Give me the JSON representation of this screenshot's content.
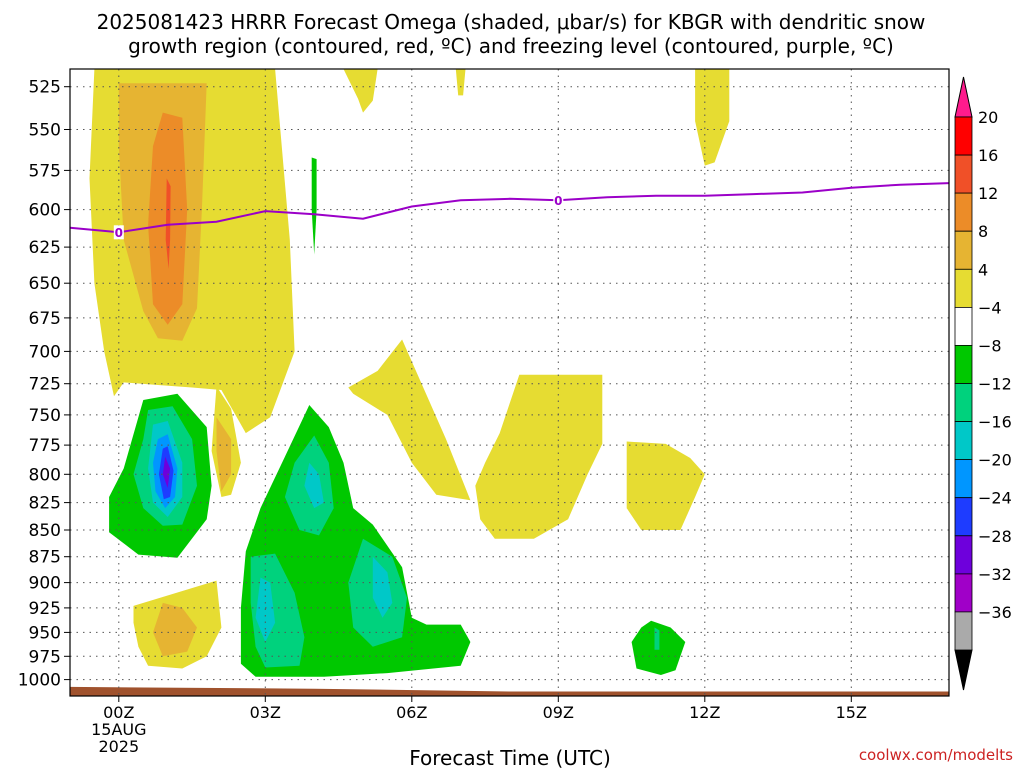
{
  "chart_data": {
    "type": "heatmap",
    "title_line1": "2025081423 HRRR Forecast Omega (shaded, μbar/s) for KBGR with dendritic snow",
    "title_line2": "growth region (contoured, red, ºC) and freezing level (contoured, purple, ºC)",
    "xlabel": "Forecast Time (UTC)",
    "credit": "coolwx.com/modelts",
    "x_ticks": [
      {
        "hour": 0,
        "label": "00Z",
        "sub1": "15AUG",
        "sub2": "2025"
      },
      {
        "hour": 3,
        "label": "03Z"
      },
      {
        "hour": 6,
        "label": "06Z"
      },
      {
        "hour": 9,
        "label": "09Z"
      },
      {
        "hour": 12,
        "label": "12Z"
      },
      {
        "hour": 15,
        "label": "15Z"
      }
    ],
    "x_range_hours": [
      -1,
      17
    ],
    "y_ticks": [
      525,
      550,
      575,
      600,
      625,
      650,
      675,
      700,
      725,
      750,
      775,
      800,
      825,
      850,
      875,
      900,
      925,
      950,
      975,
      1000
    ],
    "y_range_mb": [
      515,
      1018
    ],
    "colorbar": {
      "labels": [
        "20",
        "16",
        "12",
        "8",
        "4",
        "−4",
        "−8",
        "−12",
        "−16",
        "−20",
        "−24",
        "−28",
        "−32",
        "−36"
      ],
      "colors": [
        "#ff0000",
        "#f05028",
        "#ec8c28",
        "#e6b432",
        "#e6dc32",
        "#ffffff",
        "#00c800",
        "#00d27d",
        "#00c8c8",
        "#0096ff",
        "#1e3cff",
        "#6e00dc",
        "#a000c8",
        "#aaaaaa"
      ],
      "top_color": "#ff1b8d",
      "bottom_color": "#000000"
    },
    "freezing_level": {
      "label": "0",
      "color": "#9b00c8",
      "points": [
        [
          -1,
          612
        ],
        [
          0,
          615
        ],
        [
          1,
          610
        ],
        [
          2,
          608
        ],
        [
          3,
          601
        ],
        [
          4,
          603
        ],
        [
          5,
          606
        ],
        [
          6,
          598
        ],
        [
          7,
          594
        ],
        [
          8,
          593
        ],
        [
          9,
          594
        ],
        [
          10,
          592
        ],
        [
          11,
          591
        ],
        [
          12,
          591
        ],
        [
          13,
          590
        ],
        [
          14,
          589
        ],
        [
          15,
          586
        ],
        [
          16,
          584
        ],
        [
          17,
          583
        ]
      ]
    },
    "ground_color": "#a0522d",
    "omega_regions": [
      {
        "value_range": "4 to 8",
        "color": "#e6dc32",
        "points": [
          [
            -0.5,
            515
          ],
          [
            0.3,
            515
          ],
          [
            2.3,
            515
          ],
          [
            3.2,
            515
          ],
          [
            3.5,
            620
          ],
          [
            3.6,
            700
          ],
          [
            3.1,
            752
          ],
          [
            2.6,
            765
          ],
          [
            2.1,
            730
          ],
          [
            1.5,
            728
          ],
          [
            0.8,
            726
          ],
          [
            0.1,
            724
          ],
          [
            -0.1,
            735
          ],
          [
            -0.3,
            700
          ],
          [
            -0.5,
            650
          ],
          [
            -0.6,
            580
          ]
        ]
      },
      {
        "value_range": "4 to 8",
        "color": "#e6dc32",
        "points": [
          [
            5.8,
            691
          ],
          [
            6.7,
            770
          ],
          [
            7.2,
            823
          ],
          [
            6.5,
            818
          ],
          [
            6.0,
            790
          ],
          [
            5.5,
            750
          ],
          [
            4.8,
            733
          ],
          [
            4.7,
            728
          ],
          [
            5.3,
            715
          ]
        ]
      },
      {
        "value_range": "4 to 8",
        "color": "#e6dc32",
        "points": [
          [
            8.2,
            718
          ],
          [
            9.9,
            718
          ],
          [
            9.9,
            774
          ],
          [
            9.6,
            800
          ],
          [
            9.2,
            840
          ],
          [
            8.5,
            858
          ],
          [
            7.7,
            858
          ],
          [
            7.4,
            840
          ],
          [
            7.3,
            810
          ],
          [
            7.5,
            790
          ],
          [
            7.8,
            765
          ]
        ]
      },
      {
        "value_range": "4 to 8",
        "color": "#e6dc32",
        "points": [
          [
            10.4,
            772
          ],
          [
            11.2,
            774
          ],
          [
            11.7,
            786
          ],
          [
            12.0,
            800
          ],
          [
            11.8,
            820
          ],
          [
            11.5,
            850
          ],
          [
            10.7,
            850
          ],
          [
            10.4,
            830
          ]
        ]
      },
      {
        "value_range": "4 to 8",
        "color": "#e6dc32",
        "points": [
          [
            0.3,
            923
          ],
          [
            2.0,
            898
          ],
          [
            2.1,
            945
          ],
          [
            1.8,
            975
          ],
          [
            1.3,
            988
          ],
          [
            0.6,
            985
          ],
          [
            0.4,
            965
          ],
          [
            0.3,
            940
          ]
        ]
      },
      {
        "value_range": "4 to 8",
        "color": "#e6dc32",
        "points": [
          [
            2.0,
            727
          ],
          [
            2.3,
            745
          ],
          [
            2.5,
            790
          ],
          [
            2.3,
            818
          ],
          [
            2.1,
            820
          ],
          [
            1.9,
            780
          ]
        ]
      },
      {
        "value_range": "4 to 8",
        "color": "#e6dc32",
        "points": [
          [
            4.6,
            515
          ],
          [
            5.3,
            515
          ],
          [
            5.2,
            533
          ],
          [
            5.0,
            540
          ],
          [
            4.9,
            532
          ]
        ]
      },
      {
        "value_range": "4 to 8",
        "color": "#e6dc32",
        "points": [
          [
            6.9,
            515
          ],
          [
            7.1,
            515
          ],
          [
            7.05,
            530
          ],
          [
            6.95,
            530
          ]
        ]
      },
      {
        "value_range": "4 to 8",
        "color": "#e6dc32",
        "points": [
          [
            11.8,
            515
          ],
          [
            12.5,
            515
          ],
          [
            12.5,
            545
          ],
          [
            12.2,
            570
          ],
          [
            12.0,
            572
          ],
          [
            11.8,
            545
          ]
        ]
      },
      {
        "value_range": "8 to 12",
        "color": "#e6b432",
        "points": [
          [
            0.0,
            523
          ],
          [
            1.8,
            523
          ],
          [
            1.7,
            600
          ],
          [
            1.6,
            668
          ],
          [
            1.3,
            692
          ],
          [
            0.8,
            690
          ],
          [
            0.5,
            670
          ],
          [
            0.1,
            620
          ],
          [
            0.0,
            560
          ]
        ]
      },
      {
        "value_range": "8 to 12",
        "color": "#e6b432",
        "points": [
          [
            2.0,
            752
          ],
          [
            2.3,
            770
          ],
          [
            2.3,
            800
          ],
          [
            2.1,
            815
          ],
          [
            2.0,
            780
          ]
        ]
      },
      {
        "value_range": "8 to 12",
        "color": "#e6b432",
        "points": [
          [
            0.9,
            920
          ],
          [
            1.3,
            925
          ],
          [
            1.6,
            945
          ],
          [
            1.4,
            970
          ],
          [
            0.9,
            975
          ],
          [
            0.7,
            950
          ]
        ]
      },
      {
        "value_range": "12 to 16",
        "color": "#ec8c28",
        "points": [
          [
            0.9,
            540
          ],
          [
            1.3,
            543
          ],
          [
            1.4,
            600
          ],
          [
            1.3,
            665
          ],
          [
            1.0,
            680
          ],
          [
            0.7,
            665
          ],
          [
            0.6,
            610
          ],
          [
            0.7,
            560
          ]
        ]
      },
      {
        "value_range": "16 to 20",
        "color": "#f05028",
        "points": [
          [
            0.98,
            580
          ],
          [
            1.06,
            585
          ],
          [
            1.05,
            620
          ],
          [
            1.02,
            640
          ],
          [
            0.96,
            620
          ]
        ]
      },
      {
        "value_range": "-8 to -4",
        "color": "#00c800",
        "points": [
          [
            0.5,
            738
          ],
          [
            1.2,
            733
          ],
          [
            1.8,
            760
          ],
          [
            1.9,
            810
          ],
          [
            1.8,
            840
          ],
          [
            1.2,
            876
          ],
          [
            0.4,
            873
          ],
          [
            -0.2,
            852
          ],
          [
            -0.2,
            820
          ],
          [
            0.1,
            795
          ]
        ]
      },
      {
        "value_range": "-8 to -4",
        "color": "#00c800",
        "points": [
          [
            3.9,
            742
          ],
          [
            4.3,
            760
          ],
          [
            4.6,
            790
          ],
          [
            4.8,
            830
          ],
          [
            5.2,
            845
          ],
          [
            5.8,
            885
          ],
          [
            6.0,
            935
          ],
          [
            6.3,
            942
          ],
          [
            7.0,
            942
          ],
          [
            7.2,
            960
          ],
          [
            7.0,
            985
          ],
          [
            5.5,
            993
          ],
          [
            4.2,
            997
          ],
          [
            2.8,
            997
          ],
          [
            2.5,
            983
          ],
          [
            2.5,
            925
          ],
          [
            2.6,
            870
          ],
          [
            2.9,
            830
          ],
          [
            3.4,
            785
          ]
        ]
      },
      {
        "value_range": "-8 to -4",
        "color": "#00c800",
        "points": [
          [
            10.9,
            938
          ],
          [
            11.3,
            945
          ],
          [
            11.6,
            960
          ],
          [
            11.4,
            990
          ],
          [
            11.1,
            995
          ],
          [
            10.6,
            988
          ],
          [
            10.5,
            960
          ],
          [
            10.7,
            945
          ]
        ]
      },
      {
        "value_range": "-8 to -4",
        "color": "#00c800",
        "points": [
          [
            3.95,
            567
          ],
          [
            4.05,
            568
          ],
          [
            4.05,
            600
          ],
          [
            4.0,
            630
          ],
          [
            3.95,
            600
          ]
        ]
      },
      {
        "value_range": "-12 to -8",
        "color": "#00d27d",
        "points": [
          [
            0.6,
            746
          ],
          [
            1.1,
            743
          ],
          [
            1.5,
            770
          ],
          [
            1.6,
            810
          ],
          [
            1.3,
            845
          ],
          [
            0.9,
            846
          ],
          [
            0.5,
            830
          ],
          [
            0.3,
            800
          ],
          [
            0.5,
            770
          ]
        ]
      },
      {
        "value_range": "-12 to -8",
        "color": "#00d27d",
        "points": [
          [
            4.0,
            767
          ],
          [
            4.3,
            790
          ],
          [
            4.4,
            830
          ],
          [
            4.1,
            855
          ],
          [
            3.7,
            850
          ],
          [
            3.4,
            820
          ],
          [
            3.6,
            790
          ]
        ]
      },
      {
        "value_range": "-12 to -8",
        "color": "#00d27d",
        "points": [
          [
            2.7,
            875
          ],
          [
            3.2,
            872
          ],
          [
            3.6,
            910
          ],
          [
            3.8,
            955
          ],
          [
            3.7,
            985
          ],
          [
            3.0,
            987
          ],
          [
            2.8,
            965
          ],
          [
            2.7,
            920
          ]
        ]
      },
      {
        "value_range": "-12 to -8",
        "color": "#00d27d",
        "points": [
          [
            5.0,
            858
          ],
          [
            5.6,
            875
          ],
          [
            5.9,
            915
          ],
          [
            5.8,
            955
          ],
          [
            5.2,
            965
          ],
          [
            4.8,
            945
          ],
          [
            4.7,
            900
          ]
        ]
      },
      {
        "value_range": "-12 to -8",
        "color": "#00d27d",
        "points": [
          [
            10.97,
            945
          ],
          [
            11.07,
            948
          ],
          [
            11.07,
            968
          ],
          [
            10.97,
            968
          ]
        ]
      },
      {
        "value_range": "-16 to -12",
        "color": "#00c8c8",
        "points": [
          [
            0.7,
            758
          ],
          [
            1.0,
            755
          ],
          [
            1.3,
            790
          ],
          [
            1.3,
            820
          ],
          [
            1.0,
            838
          ],
          [
            0.7,
            825
          ],
          [
            0.6,
            795
          ]
        ]
      },
      {
        "value_range": "-16 to -12",
        "color": "#00c8c8",
        "points": [
          [
            3.9,
            790
          ],
          [
            4.1,
            800
          ],
          [
            4.2,
            825
          ],
          [
            4.0,
            830
          ],
          [
            3.8,
            810
          ]
        ]
      },
      {
        "value_range": "-16 to -12",
        "color": "#00c8c8",
        "points": [
          [
            2.9,
            895
          ],
          [
            3.1,
            900
          ],
          [
            3.2,
            940
          ],
          [
            3.0,
            960
          ],
          [
            2.8,
            935
          ]
        ]
      },
      {
        "value_range": "-16 to -12",
        "color": "#00c8c8",
        "points": [
          [
            5.2,
            875
          ],
          [
            5.5,
            890
          ],
          [
            5.6,
            920
          ],
          [
            5.4,
            935
          ],
          [
            5.2,
            915
          ]
        ]
      },
      {
        "value_range": "-20 to -16",
        "color": "#0096ff",
        "points": [
          [
            0.8,
            770
          ],
          [
            1.0,
            766
          ],
          [
            1.2,
            795
          ],
          [
            1.15,
            820
          ],
          [
            0.95,
            830
          ],
          [
            0.75,
            815
          ],
          [
            0.7,
            790
          ]
        ]
      },
      {
        "value_range": "-24 to -20",
        "color": "#1e3cff",
        "points": [
          [
            0.9,
            778
          ],
          [
            1.0,
            776
          ],
          [
            1.12,
            797
          ],
          [
            1.05,
            820
          ],
          [
            0.92,
            822
          ],
          [
            0.82,
            800
          ]
        ]
      },
      {
        "value_range": "-28 to -24",
        "color": "#6e00dc",
        "points": [
          [
            0.95,
            785
          ],
          [
            1.05,
            795
          ],
          [
            1.0,
            812
          ],
          [
            0.9,
            800
          ]
        ]
      }
    ]
  }
}
